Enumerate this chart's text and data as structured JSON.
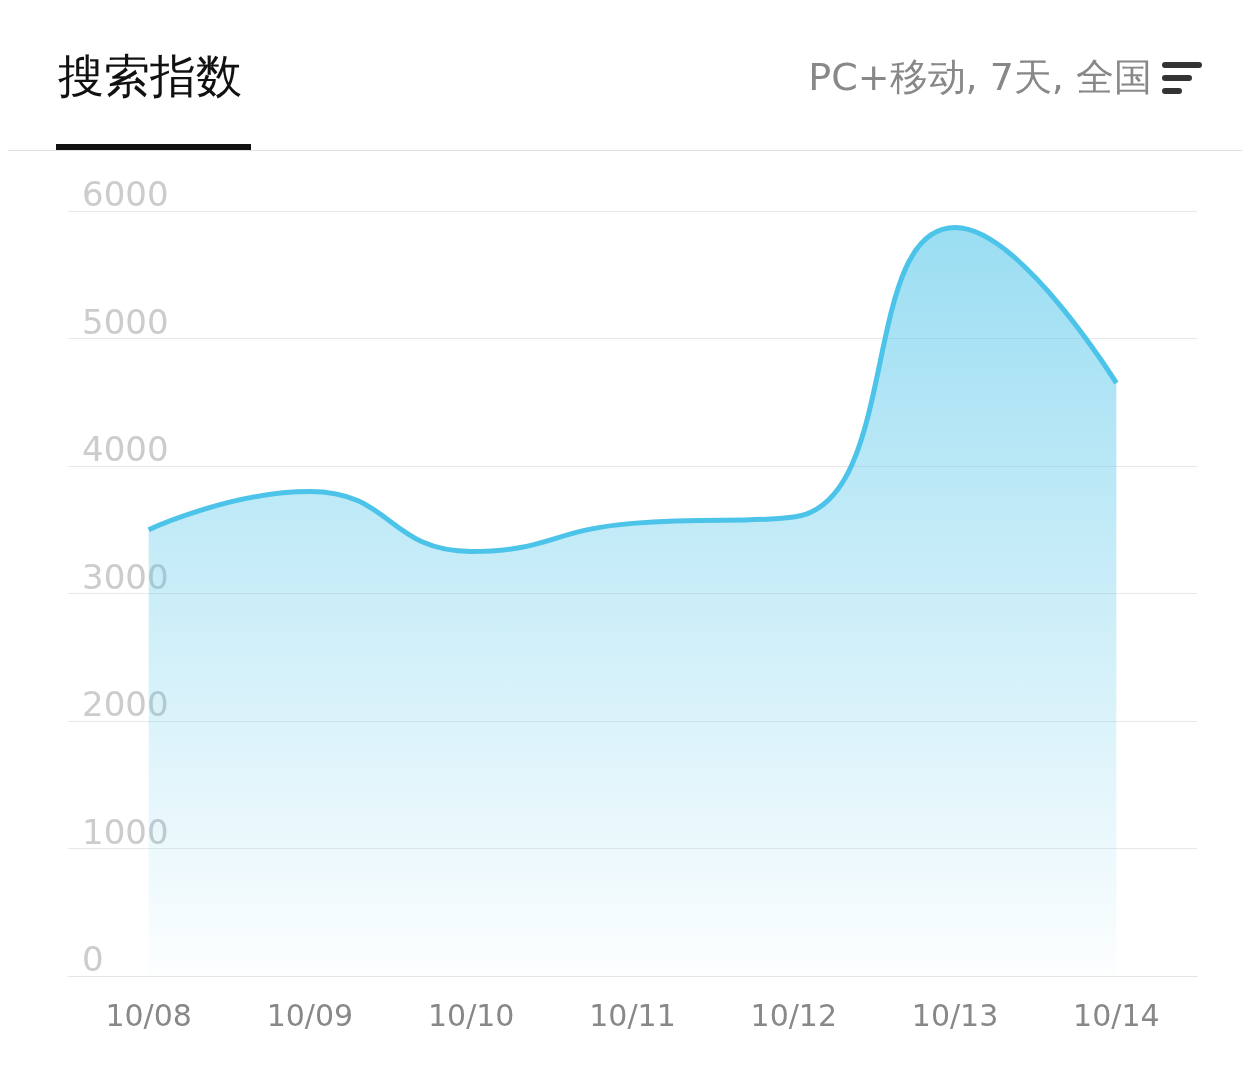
{
  "chart_data": {
    "type": "area",
    "title": "搜索指数",
    "subtitle": "PC+移动, 7天, 全国",
    "categories": [
      "10/08",
      "10/09",
      "10/10",
      "10/11",
      "10/12",
      "10/13",
      "10/14"
    ],
    "series": [
      {
        "color": "#4cc3e8",
        "values": [
          3500,
          3800,
          3330,
          3550,
          3600,
          5870,
          4650
        ]
      }
    ],
    "ylim": [
      0,
      6000
    ],
    "yticks": [
      0,
      1000,
      2000,
      3000,
      4000,
      5000,
      6000
    ],
    "grid": "y",
    "marker": "none"
  }
}
